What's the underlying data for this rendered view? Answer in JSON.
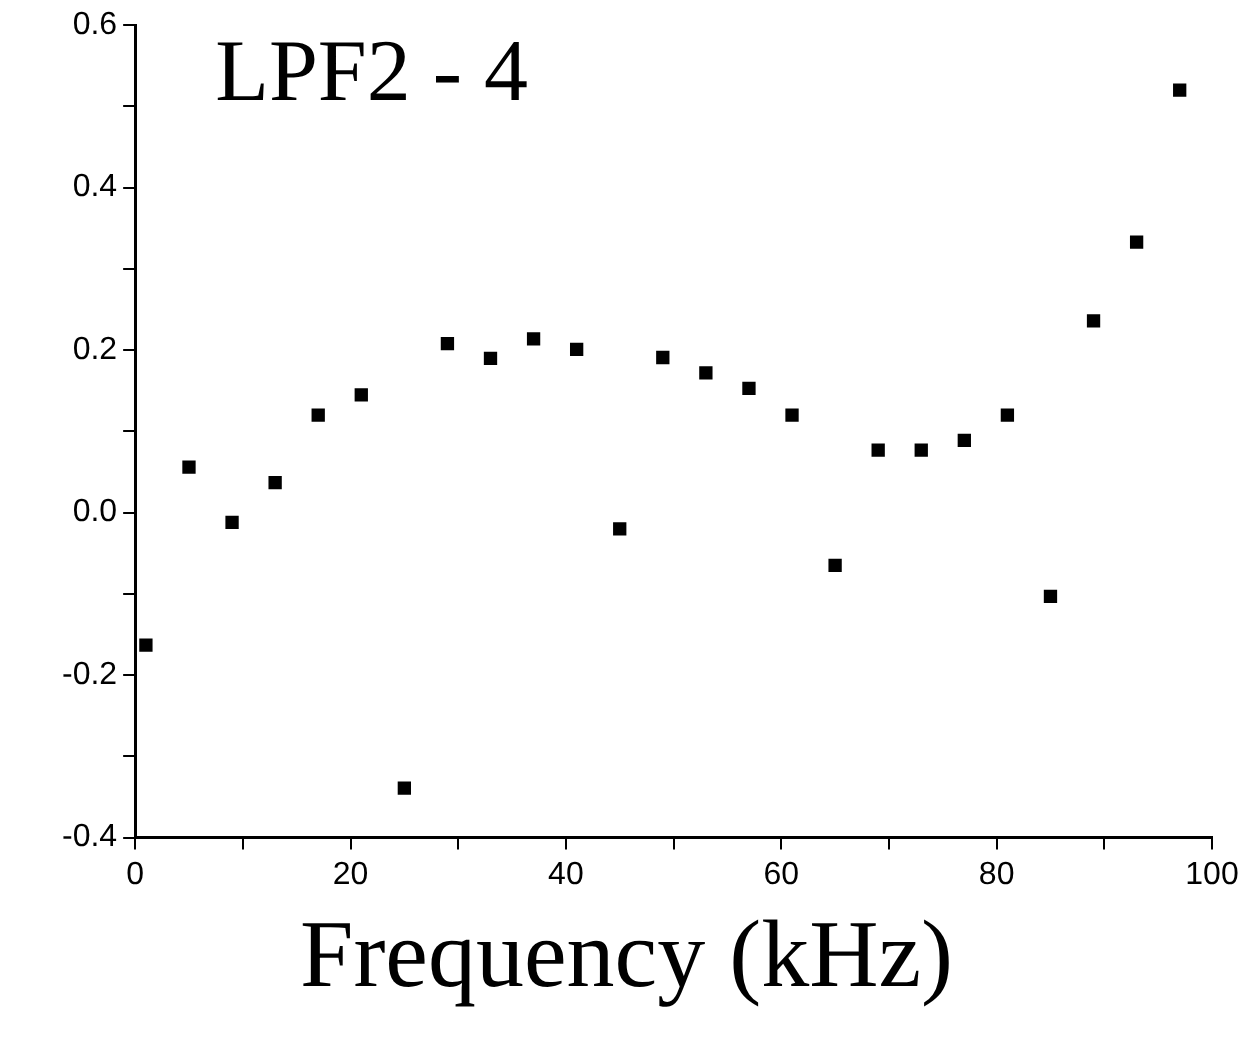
{
  "chart_data": {
    "type": "scatter",
    "title": "LPF2 - 4",
    "xlabel": "Frequency (kHz)",
    "x": [
      1,
      5,
      9,
      13,
      17,
      21,
      25,
      29,
      33,
      37,
      41,
      45,
      49,
      53,
      57,
      61,
      65,
      69,
      73,
      77,
      81,
      85,
      89,
      93,
      97
    ],
    "values": [
      -0.163,
      0.056,
      -0.012,
      0.037,
      0.12,
      0.145,
      -0.339,
      0.208,
      0.19,
      0.214,
      0.201,
      -0.02,
      0.191,
      0.172,
      0.153,
      0.12,
      -0.065,
      0.077,
      0.077,
      0.089,
      0.12,
      -0.103,
      0.236,
      0.333,
      0.52
    ],
    "color": "#000000",
    "marker": "square",
    "xlim": [
      0,
      100
    ],
    "xticks": [
      0,
      {
        "value": 10,
        "label": null
      },
      20,
      {
        "value": 30,
        "label": null
      },
      40,
      {
        "value": 50,
        "label": null
      },
      60,
      {
        "value": 70,
        "label": null
      },
      80,
      {
        "value": 90,
        "label": null
      },
      100
    ],
    "ylim": [
      -0.4,
      0.6
    ],
    "yticks": [
      -0.4,
      {
        "value": -0.3,
        "label": null
      },
      -0.2,
      {
        "value": -0.1,
        "label": null
      },
      {
        "value": 0,
        "label": "0.0"
      },
      {
        "value": 0.1,
        "label": null
      },
      0.2,
      {
        "value": 0.3,
        "label": null
      },
      0.4,
      {
        "value": 0.5,
        "label": null
      },
      0.6
    ],
    "grid": false,
    "legend": false
  }
}
